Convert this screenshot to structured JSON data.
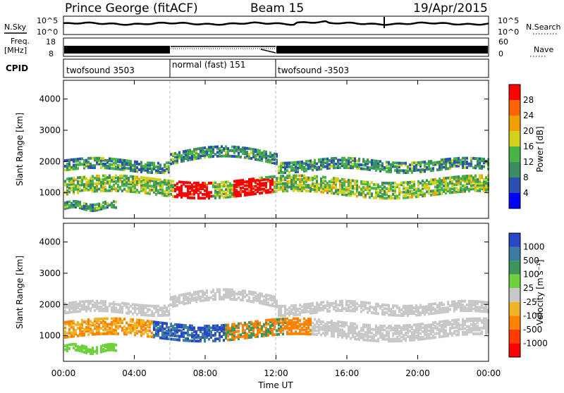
{
  "header": {
    "station": "Prince George (fitACF)",
    "beam": "Beam 15",
    "date": "19/Apr/2015"
  },
  "strips": {
    "nsky_label": "N.Sky",
    "nsky_ticks": [
      "10^5",
      "10^0"
    ],
    "nsearch_label": "N.Search",
    "freq_label": "Freq.",
    "freq_unit": "[MHz]",
    "freq_ticks": [
      "18",
      "8"
    ],
    "nave_ticks": [
      "60",
      "0"
    ],
    "nave_label": "Nave",
    "cpid_label": "CPID"
  },
  "cpid_segments": [
    {
      "label": "twofsound 3503",
      "start": 0,
      "end": 6
    },
    {
      "label": "normal (fast) 151",
      "start": 6,
      "end": 12
    },
    {
      "label": "twofsound -3503",
      "start": 12,
      "end": 24
    }
  ],
  "power_panel": {
    "ylabel": "Slant Range [km]",
    "yticks": [
      "1000",
      "2000",
      "3000",
      "4000"
    ],
    "colorbar_label": "Power [dB]",
    "colorbar_ticks": [
      "4",
      "8",
      "12",
      "16",
      "20",
      "24",
      "28"
    ],
    "colors": [
      "#0000ff",
      "#2a50b4",
      "#3c8c64",
      "#46b446",
      "#d2d21e",
      "#f0a000",
      "#ff6400",
      "#ff0000"
    ]
  },
  "velocity_panel": {
    "ylabel": "Slant Range [km]",
    "yticks": [
      "1000",
      "2000",
      "3000",
      "4000"
    ],
    "colorbar_label": "Velocity [m s⁻¹]",
    "colorbar_ticks": [
      "1000",
      "500",
      "100",
      "25",
      "-25",
      "-100",
      "-500",
      "-1000"
    ],
    "colors": [
      "#2846c8",
      "#3c7ca0",
      "#3c965a",
      "#6ed23c",
      "#c8c8c8",
      "#f0b428",
      "#ff8200",
      "#ff3c00",
      "#ff0000"
    ]
  },
  "xaxis": {
    "label": "Time UT",
    "ticks": [
      "00:00",
      "04:00",
      "08:00",
      "12:00",
      "16:00",
      "20:00",
      "00:00"
    ]
  },
  "chart_data": {
    "type": "heatmap",
    "title": "Prince George (fitACF) Beam 15 19/Apr/2015",
    "xlabel": "Time UT",
    "ylabel": "Slant Range [km]",
    "xlim": [
      0,
      24
    ],
    "ylim": [
      180,
      4600
    ],
    "series": [
      {
        "name": "Power [dB]",
        "clim": [
          0,
          30
        ]
      },
      {
        "name": "Velocity [m s⁻¹]",
        "clim": [
          -1000,
          1000
        ]
      }
    ],
    "mode_changes_hours": [
      6,
      12
    ]
  }
}
